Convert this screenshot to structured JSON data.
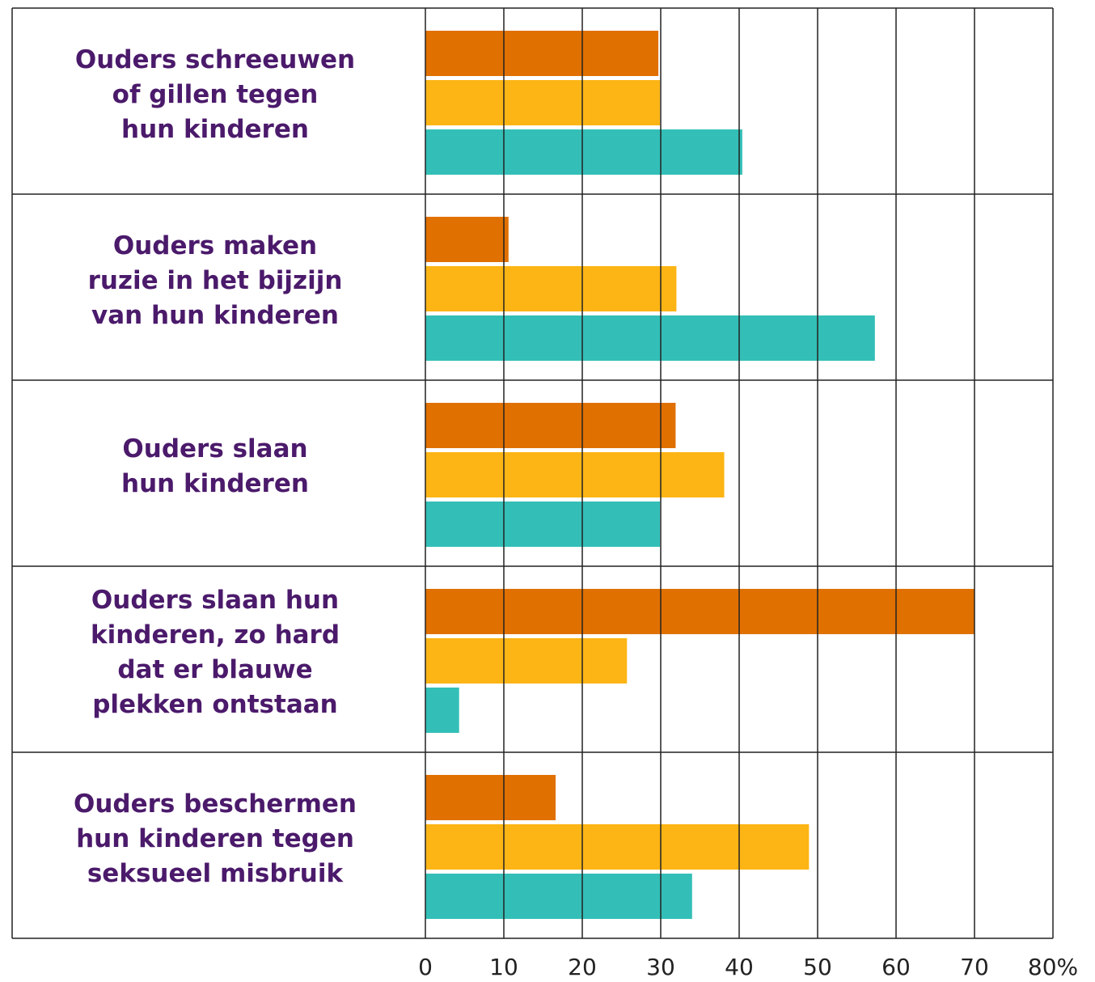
{
  "chart_data": {
    "type": "bar",
    "orientation": "horizontal",
    "categories": [
      "Ouders schreeuwen\nof gillen tegen\nhun kinderen",
      "Ouders maken\nruzie in het bijzijn\nvan hun kinderen",
      "Ouders slaan\nhun kinderen",
      "Ouders slaan hun\nkinderen, zo hard\ndat er blauwe\nplekken ontstaan",
      "Ouders beschermen\nhun kinderen tegen\nseksueel misbruik"
    ],
    "series": [
      {
        "color": "#e07000",
        "values": [
          29.7,
          10.6,
          31.9,
          70,
          16.6
        ]
      },
      {
        "color": "#fdb515",
        "values": [
          29.9,
          32.0,
          38.1,
          25.7,
          48.9
        ]
      },
      {
        "color": "#33bfb7",
        "values": [
          40.4,
          57.3,
          29.9,
          4.3,
          34.0
        ]
      }
    ],
    "xlim": [
      0,
      80
    ],
    "xticks": [
      0,
      10,
      20,
      30,
      40,
      50,
      60,
      70,
      {
        "value": 80,
        "label": "80%"
      }
    ],
    "grid": true
  }
}
